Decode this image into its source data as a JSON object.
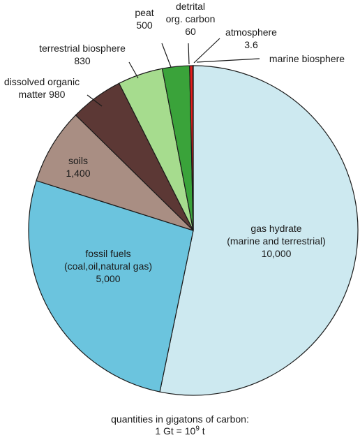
{
  "chart_data": {
    "type": "pie",
    "slices": [
      {
        "label": "gas hydrate (marine and terrestrial)",
        "value": 10000,
        "color": "#cde9f0",
        "label_lines": [
          "gas hydrate",
          "(marine and terrestrial)",
          "10,000"
        ]
      },
      {
        "label": "fossil fuels (coal,oil,natural gas)",
        "value": 5000,
        "color": "#6bc4de",
        "label_lines": [
          "fossil fuels",
          "(coal,oil,natural gas)",
          "5,000"
        ]
      },
      {
        "label": "soils",
        "value": 1400,
        "color": "#a98e83",
        "label_lines": [
          "soils",
          "1,400"
        ]
      },
      {
        "label": "dissolved organic matter",
        "value": 980,
        "color": "#5c3835",
        "label_lines": [
          "dissolved organic",
          "matter 980"
        ]
      },
      {
        "label": "terrestrial biosphere",
        "value": 830,
        "color": "#a6dc8e",
        "label_lines": [
          "terrestrial biosphere",
          "830"
        ]
      },
      {
        "label": "peat",
        "value": 500,
        "color": "#3aa33a",
        "label_lines": [
          "peat",
          "500"
        ]
      },
      {
        "label": "detrital org. carbon",
        "value": 60,
        "color": "#e61c1c",
        "label_lines": [
          "detrital",
          "org. carbon",
          "60"
        ]
      },
      {
        "label": "atmosphere",
        "value": 3.6,
        "color": "#ffffff",
        "label_lines": [
          "atmosphere",
          "3.6"
        ]
      },
      {
        "label": "marine biosphere",
        "value": 3,
        "color": "#3aa33a",
        "label_lines": [
          "marine biosphere"
        ]
      }
    ]
  },
  "caption": {
    "line1": "quantities in gigatons of carbon:",
    "line2_prefix": "1 Gt = 10",
    "line2_exp": "9",
    "line2_suffix": " t"
  }
}
